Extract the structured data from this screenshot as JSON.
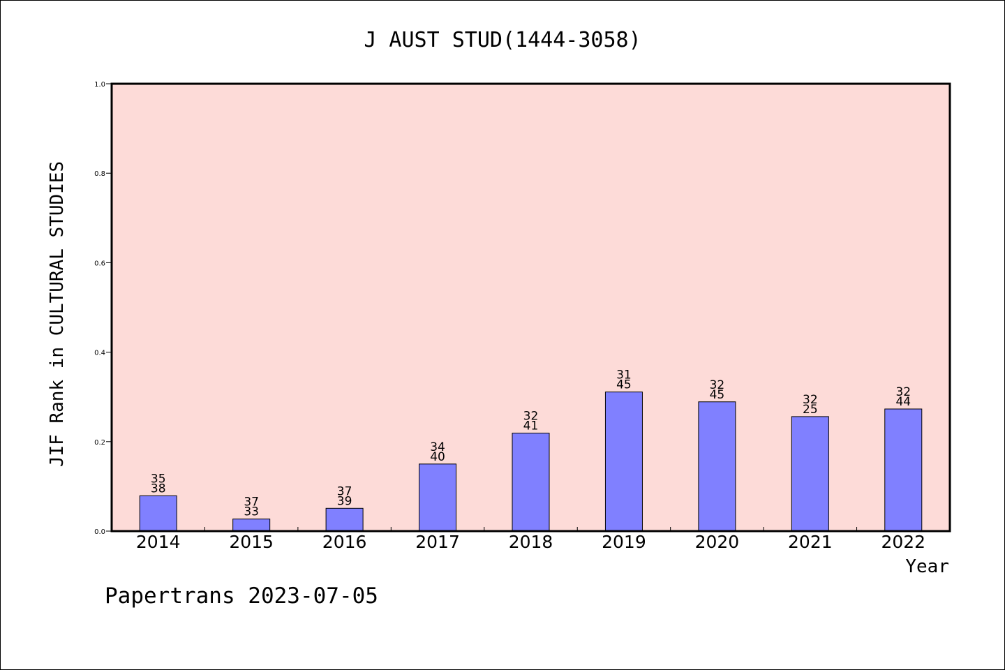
{
  "chart_data": {
    "type": "bar",
    "title": "J AUST STUD(1444-3058)",
    "xlabel": "Year",
    "ylabel": "JIF Rank in CULTURAL STUDIES",
    "ylim": [
      0,
      1.0
    ],
    "yticks": [
      "0.0",
      "0.2",
      "0.4",
      "0.6",
      "0.8",
      "1.0"
    ],
    "categories": [
      "2014",
      "2015",
      "2016",
      "2017",
      "2018",
      "2019",
      "2020",
      "2021",
      "2022"
    ],
    "values": [
      0.079,
      0.027,
      0.051,
      0.15,
      0.219,
      0.311,
      0.289,
      0.256,
      0.273
    ],
    "labels_top": [
      "35",
      "37",
      "37",
      "34",
      "32",
      "31",
      "32",
      "32",
      "32"
    ],
    "labels_bottom": [
      "38",
      "33",
      "39",
      "40",
      "41",
      "45",
      "45",
      "25",
      "44"
    ],
    "grid": false,
    "colors": {
      "plot_background": "#fddbd8",
      "bar_fill": "#8080ff",
      "bar_stroke": "#000000",
      "axis": "#000000"
    }
  },
  "footer": {
    "credit": "Papertrans 2023-07-05"
  }
}
